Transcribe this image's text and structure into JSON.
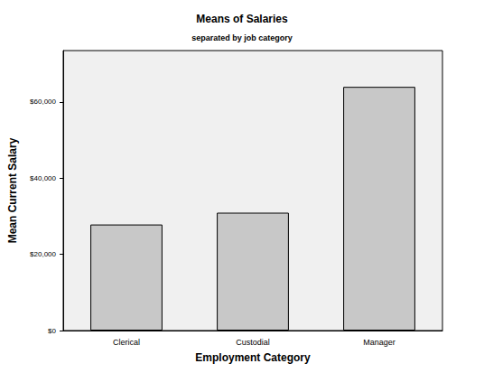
{
  "chart_data": {
    "type": "bar",
    "title": "Means of Salaries",
    "subtitle": "separated by job category",
    "x_label": "Employment Category",
    "y_label": "Mean Current Salary",
    "categories": [
      "Clerical",
      "Custodial",
      "Manager"
    ],
    "values": [
      27838.54,
      30938.89,
      63977.8
    ],
    "color": "#c8c8c8",
    "ylim": [
      0,
      73500
    ],
    "yticks": [
      {
        "value": 0,
        "label": "$0"
      },
      {
        "value": 20000,
        "label": "$20,000"
      },
      {
        "value": 40000,
        "label": "$40,000"
      },
      {
        "value": 60000,
        "label": "$60,000"
      }
    ],
    "grid": false
  }
}
